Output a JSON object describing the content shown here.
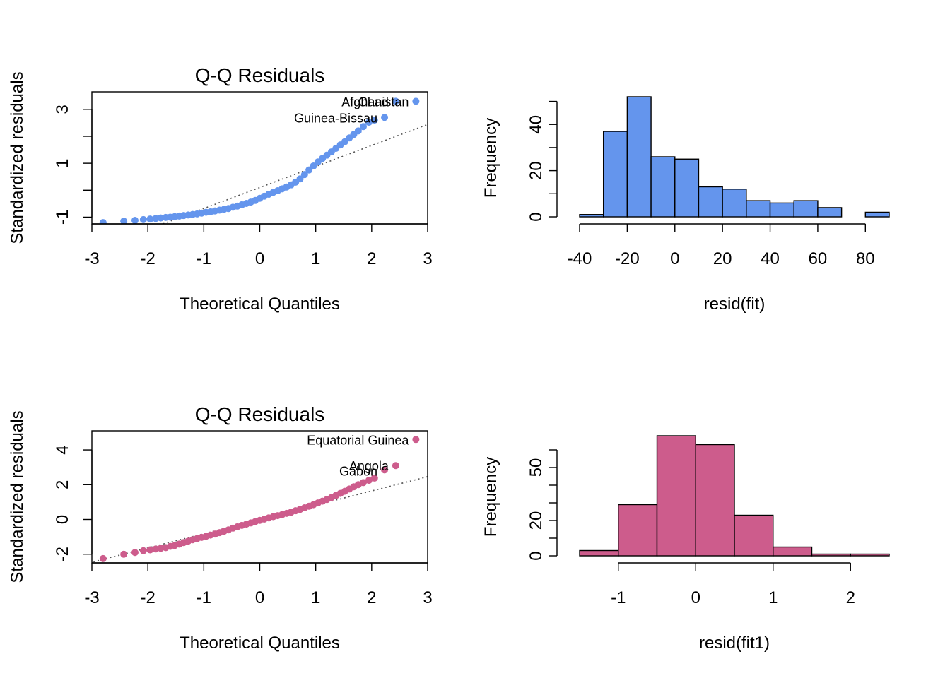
{
  "colors": {
    "panel_top": "#6495ED",
    "panel_bottom": "#CD5C8C",
    "refline": "#555555"
  },
  "chart_data": [
    {
      "type": "scatter",
      "title": "Q-Q Residuals",
      "xlabel": "Theoretical Quantiles",
      "ylabel": "Standardized residuals",
      "xlim": [
        -3,
        3
      ],
      "ylim": [
        -1.25,
        3.65
      ],
      "xticks": [
        -3,
        -2,
        -1,
        0,
        1,
        2,
        3
      ],
      "yticks_labeled": [
        -1,
        1,
        3
      ],
      "yticks_minor": [
        0,
        2
      ],
      "color": "#6495ED",
      "refline": {
        "slope": 0.78,
        "intercept": 0.1
      },
      "annotations": [
        {
          "text": "Afghanistan",
          "x": 2.79,
          "y": 3.3
        },
        {
          "text": "Chad",
          "x": 2.43,
          "y": 3.3
        },
        {
          "text": "Guinea-Bissau",
          "x": 2.23,
          "y": 2.7
        }
      ],
      "points": [
        [
          -2.8,
          -1.2
        ],
        [
          -2.43,
          -1.15
        ],
        [
          -2.23,
          -1.12
        ],
        [
          -2.08,
          -1.09
        ],
        [
          -1.96,
          -1.07
        ],
        [
          -1.86,
          -1.05
        ],
        [
          -1.77,
          -1.03
        ],
        [
          -1.68,
          -1.01
        ],
        [
          -1.6,
          -1.0
        ],
        [
          -1.52,
          -0.98
        ],
        [
          -1.44,
          -0.96
        ],
        [
          -1.36,
          -0.94
        ],
        [
          -1.28,
          -0.92
        ],
        [
          -1.2,
          -0.9
        ],
        [
          -1.12,
          -0.88
        ],
        [
          -1.04,
          -0.85
        ],
        [
          -0.96,
          -0.82
        ],
        [
          -0.88,
          -0.8
        ],
        [
          -0.8,
          -0.77
        ],
        [
          -0.72,
          -0.74
        ],
        [
          -0.64,
          -0.71
        ],
        [
          -0.56,
          -0.68
        ],
        [
          -0.48,
          -0.63
        ],
        [
          -0.4,
          -0.59
        ],
        [
          -0.32,
          -0.54
        ],
        [
          -0.24,
          -0.49
        ],
        [
          -0.16,
          -0.44
        ],
        [
          -0.08,
          -0.38
        ],
        [
          0.0,
          -0.3
        ],
        [
          0.08,
          -0.22
        ],
        [
          0.16,
          -0.15
        ],
        [
          0.24,
          -0.08
        ],
        [
          0.32,
          -0.02
        ],
        [
          0.4,
          0.05
        ],
        [
          0.48,
          0.12
        ],
        [
          0.56,
          0.2
        ],
        [
          0.64,
          0.3
        ],
        [
          0.72,
          0.42
        ],
        [
          0.8,
          0.58
        ],
        [
          0.88,
          0.75
        ],
        [
          0.96,
          0.9
        ],
        [
          1.04,
          1.05
        ],
        [
          1.12,
          1.18
        ],
        [
          1.2,
          1.3
        ],
        [
          1.28,
          1.42
        ],
        [
          1.36,
          1.55
        ],
        [
          1.44,
          1.68
        ],
        [
          1.52,
          1.8
        ],
        [
          1.6,
          1.94
        ],
        [
          1.68,
          2.07
        ],
        [
          1.76,
          2.2
        ],
        [
          1.85,
          2.36
        ],
        [
          1.95,
          2.52
        ],
        [
          2.05,
          2.6
        ],
        [
          2.23,
          2.7
        ],
        [
          2.43,
          3.3
        ],
        [
          2.79,
          3.3
        ]
      ]
    },
    {
      "type": "bar",
      "title": "",
      "xlabel": "resid(fit)",
      "ylabel": "Frequency",
      "xlim": [
        -40,
        90
      ],
      "ylim": [
        0,
        52
      ],
      "xticks": [
        -40,
        -20,
        0,
        20,
        40,
        60,
        80
      ],
      "yticks_labeled": [
        0,
        20,
        40
      ],
      "yticks_minor": [
        10,
        30,
        50
      ],
      "color": "#6495ED",
      "bins": [
        [
          -40,
          -30,
          1
        ],
        [
          -30,
          -20,
          37
        ],
        [
          -20,
          -10,
          52
        ],
        [
          -10,
          0,
          26
        ],
        [
          0,
          10,
          25
        ],
        [
          10,
          20,
          13
        ],
        [
          20,
          30,
          12
        ],
        [
          30,
          40,
          7
        ],
        [
          40,
          50,
          6
        ],
        [
          50,
          60,
          7
        ],
        [
          60,
          70,
          4
        ],
        [
          70,
          80,
          0
        ],
        [
          80,
          90,
          2
        ]
      ]
    },
    {
      "type": "scatter",
      "title": "Q-Q Residuals",
      "xlabel": "Theoretical Quantiles",
      "ylabel": "Standardized residuals",
      "xlim": [
        -3,
        3
      ],
      "ylim": [
        -2.5,
        5.1
      ],
      "xticks": [
        -3,
        -2,
        -1,
        0,
        1,
        2,
        3
      ],
      "yticks_labeled": [
        -2,
        0,
        2,
        4
      ],
      "yticks_minor": [],
      "color": "#CD5C8C",
      "refline": {
        "slope": 0.82,
        "intercept": 0.0
      },
      "annotations": [
        {
          "text": "Equatorial Guinea",
          "x": 2.79,
          "y": 4.6
        },
        {
          "text": "Angola",
          "x": 2.43,
          "y": 3.1
        },
        {
          "text": "Gabon",
          "x": 2.23,
          "y": 2.8
        }
      ],
      "points": [
        [
          -2.8,
          -2.25
        ],
        [
          -2.43,
          -2.0
        ],
        [
          -2.23,
          -1.9
        ],
        [
          -2.08,
          -1.8
        ],
        [
          -1.96,
          -1.75
        ],
        [
          -1.86,
          -1.7
        ],
        [
          -1.77,
          -1.66
        ],
        [
          -1.68,
          -1.62
        ],
        [
          -1.6,
          -1.55
        ],
        [
          -1.52,
          -1.5
        ],
        [
          -1.44,
          -1.42
        ],
        [
          -1.36,
          -1.33
        ],
        [
          -1.28,
          -1.25
        ],
        [
          -1.2,
          -1.17
        ],
        [
          -1.12,
          -1.1
        ],
        [
          -1.04,
          -1.03
        ],
        [
          -0.96,
          -0.97
        ],
        [
          -0.88,
          -0.9
        ],
        [
          -0.8,
          -0.84
        ],
        [
          -0.72,
          -0.76
        ],
        [
          -0.64,
          -0.68
        ],
        [
          -0.56,
          -0.6
        ],
        [
          -0.48,
          -0.5
        ],
        [
          -0.4,
          -0.42
        ],
        [
          -0.32,
          -0.34
        ],
        [
          -0.24,
          -0.27
        ],
        [
          -0.16,
          -0.2
        ],
        [
          -0.08,
          -0.12
        ],
        [
          0.0,
          -0.05
        ],
        [
          0.08,
          0.02
        ],
        [
          0.16,
          0.09
        ],
        [
          0.24,
          0.16
        ],
        [
          0.32,
          0.22
        ],
        [
          0.4,
          0.28
        ],
        [
          0.48,
          0.35
        ],
        [
          0.56,
          0.42
        ],
        [
          0.64,
          0.5
        ],
        [
          0.72,
          0.58
        ],
        [
          0.8,
          0.67
        ],
        [
          0.88,
          0.76
        ],
        [
          0.96,
          0.85
        ],
        [
          1.04,
          0.95
        ],
        [
          1.12,
          1.05
        ],
        [
          1.2,
          1.15
        ],
        [
          1.28,
          1.26
        ],
        [
          1.36,
          1.38
        ],
        [
          1.44,
          1.5
        ],
        [
          1.52,
          1.62
        ],
        [
          1.6,
          1.75
        ],
        [
          1.68,
          1.88
        ],
        [
          1.76,
          2.0
        ],
        [
          1.85,
          2.12
        ],
        [
          1.95,
          2.25
        ],
        [
          2.05,
          2.38
        ],
        [
          2.23,
          2.85
        ],
        [
          2.43,
          3.1
        ],
        [
          2.79,
          4.6
        ]
      ]
    },
    {
      "type": "bar",
      "title": "",
      "xlabel": "resid(fit1)",
      "ylabel": "Frequency",
      "xlim": [
        -1.5,
        2.5
      ],
      "ylim": [
        0,
        68
      ],
      "xticks": [
        -1,
        0,
        1,
        2
      ],
      "yticks_labeled": [
        0,
        20,
        50
      ],
      "yticks_minor": [
        10,
        30,
        40,
        60
      ],
      "color": "#CD5C8C",
      "bins": [
        [
          -1.5,
          -1.0,
          3
        ],
        [
          -1.0,
          -0.5,
          29
        ],
        [
          -0.5,
          0.0,
          68
        ],
        [
          0.0,
          0.5,
          63
        ],
        [
          0.5,
          1.0,
          23
        ],
        [
          1.0,
          1.5,
          5
        ],
        [
          1.5,
          2.0,
          1
        ],
        [
          2.0,
          2.5,
          1
        ]
      ]
    }
  ]
}
